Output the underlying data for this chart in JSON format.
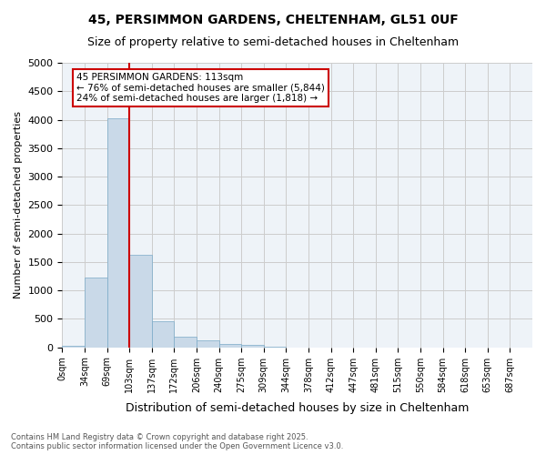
{
  "title_line1": "45, PERSIMMON GARDENS, CHELTENHAM, GL51 0UF",
  "title_line2": "Size of property relative to semi-detached houses in Cheltenham",
  "xlabel": "Distribution of semi-detached houses by size in Cheltenham",
  "ylabel": "Number of semi-detached properties",
  "footnote": "Contains HM Land Registry data © Crown copyright and database right 2025.\nContains public sector information licensed under the Open Government Licence v3.0.",
  "bin_labels": [
    "0sqm",
    "34sqm",
    "69sqm",
    "103sqm",
    "137sqm",
    "172sqm",
    "206sqm",
    "240sqm",
    "275sqm",
    "309sqm",
    "344sqm",
    "378sqm",
    "412sqm",
    "447sqm",
    "481sqm",
    "515sqm",
    "550sqm",
    "584sqm",
    "618sqm",
    "653sqm",
    "687sqm"
  ],
  "bar_values": [
    30,
    1220,
    4020,
    1620,
    460,
    185,
    130,
    65,
    35,
    5,
    0,
    0,
    0,
    0,
    0,
    0,
    0,
    0,
    0,
    0,
    0
  ],
  "bar_color": "#c9d9e8",
  "bar_edge_color": "#7aaac8",
  "grid_color": "#cccccc",
  "bg_color": "#eef3f8",
  "vline_x": 3,
  "vline_color": "#cc0000",
  "annotation_title": "45 PERSIMMON GARDENS: 113sqm",
  "annotation_line1": "← 76% of semi-detached houses are smaller (5,844)",
  "annotation_line2": "24% of semi-detached houses are larger (1,818) →",
  "annotation_box_color": "#cc0000",
  "ylim": [
    0,
    5000
  ],
  "yticks": [
    0,
    500,
    1000,
    1500,
    2000,
    2500,
    3000,
    3500,
    4000,
    4500,
    5000
  ]
}
